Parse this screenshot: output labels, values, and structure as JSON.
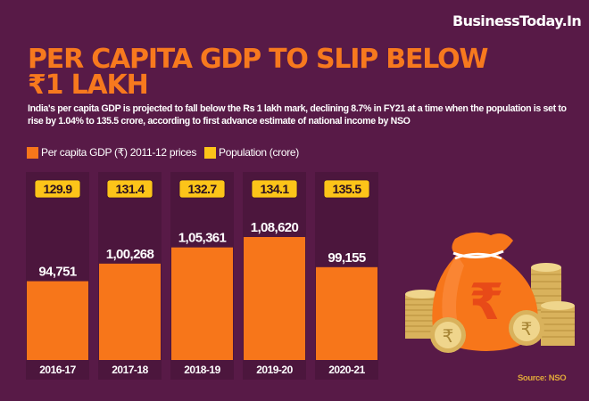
{
  "brand": {
    "logo_text": "BusinessToday.In"
  },
  "header": {
    "title_line1": "PER CAPITA GDP TO SLIP BELOW",
    "title_line2": "₹1 LAKH",
    "subtitle": "India's per capita GDP is projected to fall below the Rs 1 lakh mark, declining 8.7% in FY21 at a time when the population is set to rise by 1.04% to 135.5 crore, according to first advance estimate of national income by NSO"
  },
  "legend": [
    {
      "label": "Per capita GDP (₹)  2011-12 prices",
      "color": "#f7761a"
    },
    {
      "label": "Population (crore)",
      "color": "#fcc419"
    }
  ],
  "source": "Source: NSO",
  "colors": {
    "background": "#581a47",
    "panel": "#4c163d",
    "bar": "#f7761a",
    "badge": "#fcc419",
    "title": "#f7791e"
  },
  "chart_data": {
    "type": "bar",
    "title": "PER CAPITA GDP TO SLIP BELOW ₹1 LAKH",
    "xlabel": "",
    "ylabel": "",
    "categories": [
      "2016-17",
      "2017-18",
      "2018-19",
      "2019-20",
      "2020-21"
    ],
    "series": [
      {
        "name": "Per capita GDP (₹) 2011-12 prices",
        "values": [
          94751,
          100268,
          105361,
          108620,
          99155
        ],
        "labels": [
          "94,751",
          "1,00,268",
          "1,05,361",
          "1,08,620",
          "99,155"
        ]
      },
      {
        "name": "Population (crore)",
        "values": [
          129.9,
          131.4,
          132.7,
          134.1,
          135.5
        ],
        "labels": [
          "129.9",
          "131.4",
          "132.7",
          "134.1",
          "135.5"
        ]
      }
    ],
    "ylim": [
      70000,
      115000
    ],
    "grid": false,
    "legend_position": "top-left"
  }
}
